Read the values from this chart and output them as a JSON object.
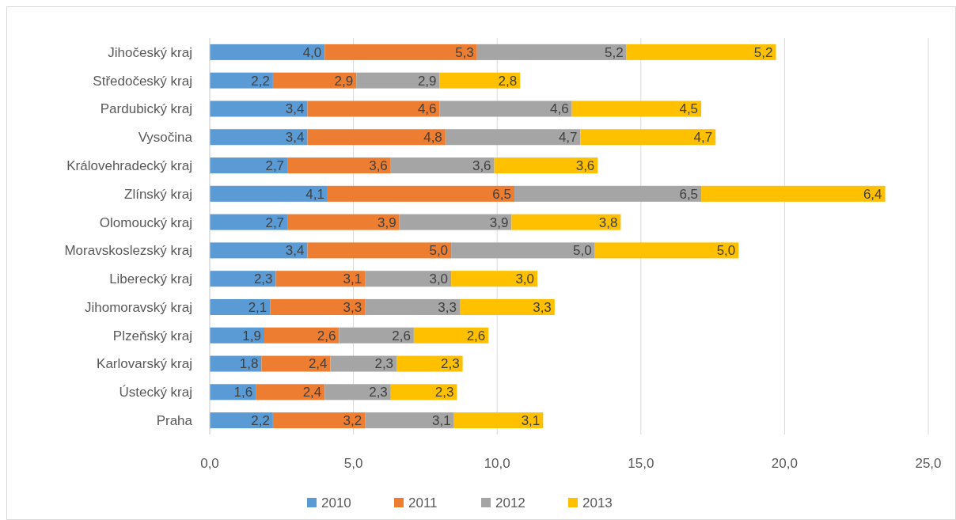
{
  "chart_data": {
    "type": "bar",
    "orientation": "horizontal",
    "stacked": true,
    "categories": [
      "Jihočeský kraj",
      "Středočeský kraj",
      "Pardubický kraj",
      "Vysočina",
      "Královehradecký kraj",
      "Zlínský kraj",
      "Olomoucký kraj",
      "Moravskoslezský kraj",
      "Liberecký kraj",
      "Jihomoravský kraj",
      "Plzeňský kraj",
      "Karlovarský kraj",
      "Ústecký kraj",
      "Praha"
    ],
    "series": [
      {
        "name": "2010",
        "color": "#5b9bd5",
        "values": [
          4.0,
          2.2,
          3.4,
          3.4,
          2.7,
          4.1,
          2.7,
          3.4,
          2.3,
          2.1,
          1.9,
          1.8,
          1.6,
          2.2
        ],
        "value_labels": [
          "4,0",
          "2,2",
          "3,4",
          "3,4",
          "2,7",
          "4,1",
          "2,7",
          "3,4",
          "2,3",
          "2,1",
          "1,9",
          "1,8",
          "1,6",
          "2,2"
        ]
      },
      {
        "name": "2011",
        "color": "#ed7d31",
        "values": [
          5.3,
          2.9,
          4.6,
          4.8,
          3.6,
          6.5,
          3.9,
          5.0,
          3.1,
          3.3,
          2.6,
          2.4,
          2.4,
          3.2
        ],
        "value_labels": [
          "5,3",
          "2,9",
          "4,6",
          "4,8",
          "3,6",
          "6,5",
          "3,9",
          "5,0",
          "3,1",
          "3,3",
          "2,6",
          "2,4",
          "2,4",
          "3,2"
        ]
      },
      {
        "name": "2012",
        "color": "#a5a5a5",
        "values": [
          5.2,
          2.9,
          4.6,
          4.7,
          3.6,
          6.5,
          3.9,
          5.0,
          3.0,
          3.3,
          2.6,
          2.3,
          2.3,
          3.1
        ],
        "value_labels": [
          "5,2",
          "2,9",
          "4,6",
          "4,7",
          "3,6",
          "6,5",
          "3,9",
          "5,0",
          "3,0",
          "3,3",
          "2,6",
          "2,3",
          "2,3",
          "3,1"
        ]
      },
      {
        "name": "2013",
        "color": "#ffc000",
        "values": [
          5.2,
          2.8,
          4.5,
          4.7,
          3.6,
          6.4,
          3.8,
          5.0,
          3.0,
          3.3,
          2.6,
          2.3,
          2.3,
          3.1
        ],
        "value_labels": [
          "5,2",
          "2,8",
          "4,5",
          "4,7",
          "3,6",
          "6,4",
          "3,8",
          "5,0",
          "3,0",
          "3,3",
          "2,6",
          "2,3",
          "2,3",
          "3,1"
        ]
      }
    ],
    "xlim": [
      0,
      25
    ],
    "xticks": [
      {
        "value": 0,
        "label": "0,0"
      },
      {
        "value": 5,
        "label": "5,0"
      },
      {
        "value": 10,
        "label": "10,0"
      },
      {
        "value": 15,
        "label": "15,0"
      },
      {
        "value": 20,
        "label": "20,0"
      },
      {
        "value": 25,
        "label": "25,0"
      }
    ],
    "grid": "x",
    "legend": "bottom"
  }
}
